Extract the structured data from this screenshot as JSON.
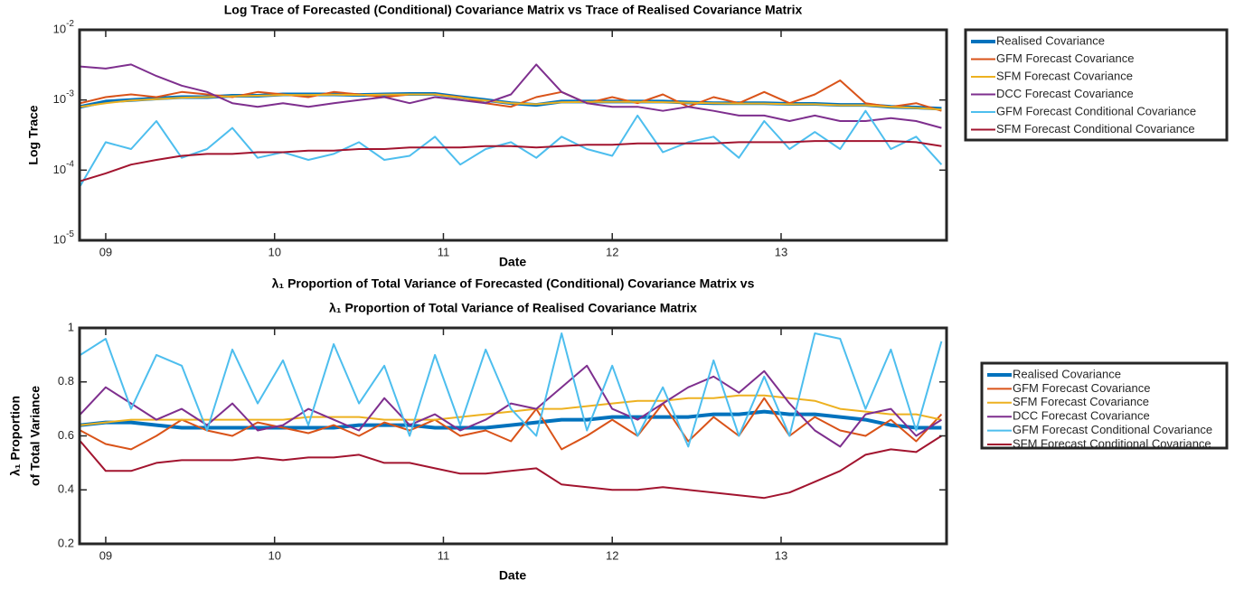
{
  "chart_data": [
    {
      "type": "line",
      "log_y": true,
      "title": [
        "Log Trace of Forecasted (Conditional) Covariance Matrix vs Trace of Realised Covariance Matrix"
      ],
      "xlabel": "Date",
      "ylabel": [
        "Log Trace"
      ],
      "legend": "outside right",
      "x": [
        8.85,
        9.0,
        9.15,
        9.3,
        9.45,
        9.6,
        9.75,
        9.9,
        10.05,
        10.2,
        10.35,
        10.5,
        10.65,
        10.8,
        10.95,
        11.1,
        11.25,
        11.4,
        11.55,
        11.7,
        11.85,
        12.0,
        12.15,
        12.3,
        12.45,
        12.6,
        12.75,
        12.9,
        13.05,
        13.2,
        13.35,
        13.5,
        13.65,
        13.8,
        13.95
      ],
      "xlim": [
        8.845,
        13.98
      ],
      "xticks": [
        {
          "value": 9,
          "label": "09"
        },
        10,
        11,
        12,
        13
      ],
      "ylim": [
        1e-05,
        0.01
      ],
      "yticks": [
        {
          "value": 1e-05,
          "label": "10",
          "sup": "-5"
        },
        {
          "value": 0.0001,
          "label": "10",
          "sup": "-4"
        },
        {
          "value": 0.001,
          "label": "10",
          "sup": "-3"
        },
        {
          "value": 0.01,
          "label": "10",
          "sup": "-2"
        }
      ],
      "series": [
        {
          "name": "Realised Covariance",
          "color": "#0072BD",
          "line_width": 4,
          "values": [
            0.0008,
            0.00095,
            0.001,
            0.00105,
            0.0011,
            0.0011,
            0.00115,
            0.00115,
            0.0012,
            0.0012,
            0.0012,
            0.00118,
            0.0012,
            0.00122,
            0.00122,
            0.0011,
            0.001,
            0.0009,
            0.00085,
            0.00095,
            0.00095,
            0.00095,
            0.00095,
            0.00095,
            0.00092,
            0.0009,
            0.0009,
            0.0009,
            0.00088,
            0.00088,
            0.00085,
            0.00085,
            0.0008,
            0.00078,
            0.00075
          ]
        },
        {
          "name": "GFM Forecast Covariance",
          "color": "#D95319",
          "line_width": 2,
          "values": [
            0.0009,
            0.0011,
            0.0012,
            0.0011,
            0.0013,
            0.0012,
            0.0011,
            0.0013,
            0.0012,
            0.0011,
            0.0013,
            0.0012,
            0.0011,
            0.0012,
            0.0012,
            0.0011,
            0.0009,
            0.0008,
            0.0011,
            0.0013,
            0.0009,
            0.0011,
            0.0009,
            0.0012,
            0.0008,
            0.0011,
            0.0009,
            0.0013,
            0.0009,
            0.0012,
            0.0019,
            0.0009,
            0.0008,
            0.0009,
            0.0007
          ]
        },
        {
          "name": "SFM Forecast Covariance",
          "color": "#EDB120",
          "line_width": 2,
          "values": [
            0.0008,
            0.0009,
            0.00098,
            0.00103,
            0.00108,
            0.0011,
            0.00113,
            0.00115,
            0.00118,
            0.00118,
            0.00119,
            0.00118,
            0.00119,
            0.0012,
            0.0012,
            0.00108,
            0.00098,
            0.0009,
            0.00087,
            0.00093,
            0.00094,
            0.00094,
            0.00094,
            0.00093,
            0.00091,
            0.0009,
            0.00089,
            0.00089,
            0.00087,
            0.00087,
            0.00084,
            0.00084,
            0.0008,
            0.00077,
            0.00073
          ]
        },
        {
          "name": "DCC Forecast Covariance",
          "color": "#7E2F8E",
          "line_width": 2,
          "values": [
            0.003,
            0.0028,
            0.0032,
            0.0022,
            0.0016,
            0.0013,
            0.0009,
            0.0008,
            0.0009,
            0.0008,
            0.0009,
            0.001,
            0.0011,
            0.0009,
            0.0011,
            0.001,
            0.0009,
            0.0012,
            0.0032,
            0.0013,
            0.0009,
            0.0008,
            0.0008,
            0.0007,
            0.0008,
            0.0007,
            0.0006,
            0.0006,
            0.0005,
            0.0006,
            0.0005,
            0.0005,
            0.00055,
            0.0005,
            0.0004
          ]
        },
        {
          "name": "GFM Forecast Conditional Covariance",
          "color": "#4DBEEE",
          "line_width": 2,
          "values": [
            6e-05,
            0.00025,
            0.0002,
            0.0005,
            0.00015,
            0.0002,
            0.0004,
            0.00015,
            0.00018,
            0.00014,
            0.00017,
            0.00025,
            0.00014,
            0.00016,
            0.0003,
            0.00012,
            0.0002,
            0.00025,
            0.00015,
            0.0003,
            0.0002,
            0.00016,
            0.0006,
            0.00018,
            0.00025,
            0.0003,
            0.00015,
            0.0005,
            0.0002,
            0.00035,
            0.0002,
            0.0007,
            0.0002,
            0.0003,
            0.00012
          ]
        },
        {
          "name": "SFM Forecast Conditional Covariance",
          "color": "#A2142F",
          "line_width": 2,
          "values": [
            7e-05,
            9e-05,
            0.00012,
            0.00014,
            0.00016,
            0.00017,
            0.00017,
            0.00018,
            0.00018,
            0.00019,
            0.00019,
            0.0002,
            0.0002,
            0.00021,
            0.00021,
            0.00021,
            0.00022,
            0.00022,
            0.00021,
            0.00022,
            0.00023,
            0.00023,
            0.00024,
            0.00024,
            0.00024,
            0.00024,
            0.00025,
            0.00025,
            0.00025,
            0.00026,
            0.00026,
            0.00026,
            0.00026,
            0.00025,
            0.00022
          ]
        }
      ]
    },
    {
      "type": "line",
      "log_y": false,
      "title": [
        "λ₁ Proportion of Total Variance of Forecasted (Conditional) Covariance Matrix vs",
        "λ₁ Proportion of Total Variance of Realised Covariance Matrix"
      ],
      "xlabel": "Date",
      "ylabel": [
        "λ₁ Proportion",
        "of Total Variance"
      ],
      "legend": "outside right",
      "x": [
        8.85,
        9.0,
        9.15,
        9.3,
        9.45,
        9.6,
        9.75,
        9.9,
        10.05,
        10.2,
        10.35,
        10.5,
        10.65,
        10.8,
        10.95,
        11.1,
        11.25,
        11.4,
        11.55,
        11.7,
        11.85,
        12.0,
        12.15,
        12.3,
        12.45,
        12.6,
        12.75,
        12.9,
        13.05,
        13.2,
        13.35,
        13.5,
        13.65,
        13.8,
        13.95
      ],
      "xlim": [
        8.845,
        13.98
      ],
      "xticks": [
        {
          "value": 9,
          "label": "09"
        },
        10,
        11,
        12,
        13
      ],
      "ylim": [
        0.2,
        1
      ],
      "yticks": [
        0.2,
        0.4,
        0.6,
        0.8,
        1
      ],
      "series": [
        {
          "name": "Realised Covariance",
          "color": "#0072BD",
          "line_width": 4,
          "values": [
            0.64,
            0.65,
            0.65,
            0.64,
            0.63,
            0.63,
            0.63,
            0.63,
            0.63,
            0.63,
            0.63,
            0.64,
            0.64,
            0.64,
            0.63,
            0.63,
            0.63,
            0.64,
            0.65,
            0.66,
            0.66,
            0.67,
            0.67,
            0.67,
            0.67,
            0.68,
            0.68,
            0.69,
            0.68,
            0.68,
            0.67,
            0.66,
            0.64,
            0.63,
            0.63
          ]
        },
        {
          "name": "GFM Forecast Covariance",
          "color": "#D95319",
          "line_width": 2,
          "values": [
            0.62,
            0.57,
            0.55,
            0.6,
            0.66,
            0.62,
            0.6,
            0.65,
            0.63,
            0.61,
            0.64,
            0.6,
            0.65,
            0.62,
            0.66,
            0.6,
            0.62,
            0.58,
            0.7,
            0.55,
            0.6,
            0.66,
            0.6,
            0.72,
            0.58,
            0.67,
            0.6,
            0.74,
            0.6,
            0.67,
            0.62,
            0.6,
            0.66,
            0.58,
            0.68
          ]
        },
        {
          "name": "SFM Forecast Covariance",
          "color": "#EDB120",
          "line_width": 2,
          "values": [
            0.64,
            0.65,
            0.66,
            0.66,
            0.66,
            0.66,
            0.66,
            0.66,
            0.66,
            0.67,
            0.67,
            0.67,
            0.66,
            0.66,
            0.66,
            0.67,
            0.68,
            0.69,
            0.7,
            0.7,
            0.71,
            0.72,
            0.73,
            0.73,
            0.74,
            0.74,
            0.75,
            0.75,
            0.74,
            0.73,
            0.7,
            0.69,
            0.68,
            0.68,
            0.66
          ]
        },
        {
          "name": "DCC Forecast Covariance",
          "color": "#7E2F8E",
          "line_width": 2,
          "values": [
            0.68,
            0.78,
            0.72,
            0.66,
            0.7,
            0.64,
            0.72,
            0.62,
            0.64,
            0.7,
            0.66,
            0.62,
            0.74,
            0.64,
            0.68,
            0.62,
            0.66,
            0.72,
            0.7,
            0.78,
            0.86,
            0.7,
            0.66,
            0.72,
            0.78,
            0.82,
            0.76,
            0.84,
            0.72,
            0.62,
            0.56,
            0.68,
            0.7,
            0.6,
            0.66
          ]
        },
        {
          "name": "GFM Forecast Conditional Covariance",
          "color": "#4DBEEE",
          "line_width": 2,
          "values": [
            0.9,
            0.96,
            0.7,
            0.9,
            0.86,
            0.62,
            0.92,
            0.72,
            0.88,
            0.64,
            0.94,
            0.72,
            0.86,
            0.6,
            0.9,
            0.64,
            0.92,
            0.7,
            0.6,
            0.98,
            0.62,
            0.86,
            0.6,
            0.78,
            0.56,
            0.88,
            0.6,
            0.82,
            0.6,
            0.98,
            0.96,
            0.7,
            0.92,
            0.62,
            0.95
          ]
        },
        {
          "name": "SFM Forecast Conditional Covariance",
          "color": "#A2142F",
          "line_width": 2,
          "values": [
            0.58,
            0.47,
            0.47,
            0.5,
            0.51,
            0.51,
            0.51,
            0.52,
            0.51,
            0.52,
            0.52,
            0.53,
            0.5,
            0.5,
            0.48,
            0.46,
            0.46,
            0.47,
            0.48,
            0.42,
            0.41,
            0.4,
            0.4,
            0.41,
            0.4,
            0.39,
            0.38,
            0.37,
            0.39,
            0.43,
            0.47,
            0.53,
            0.55,
            0.54,
            0.6
          ]
        }
      ]
    }
  ]
}
